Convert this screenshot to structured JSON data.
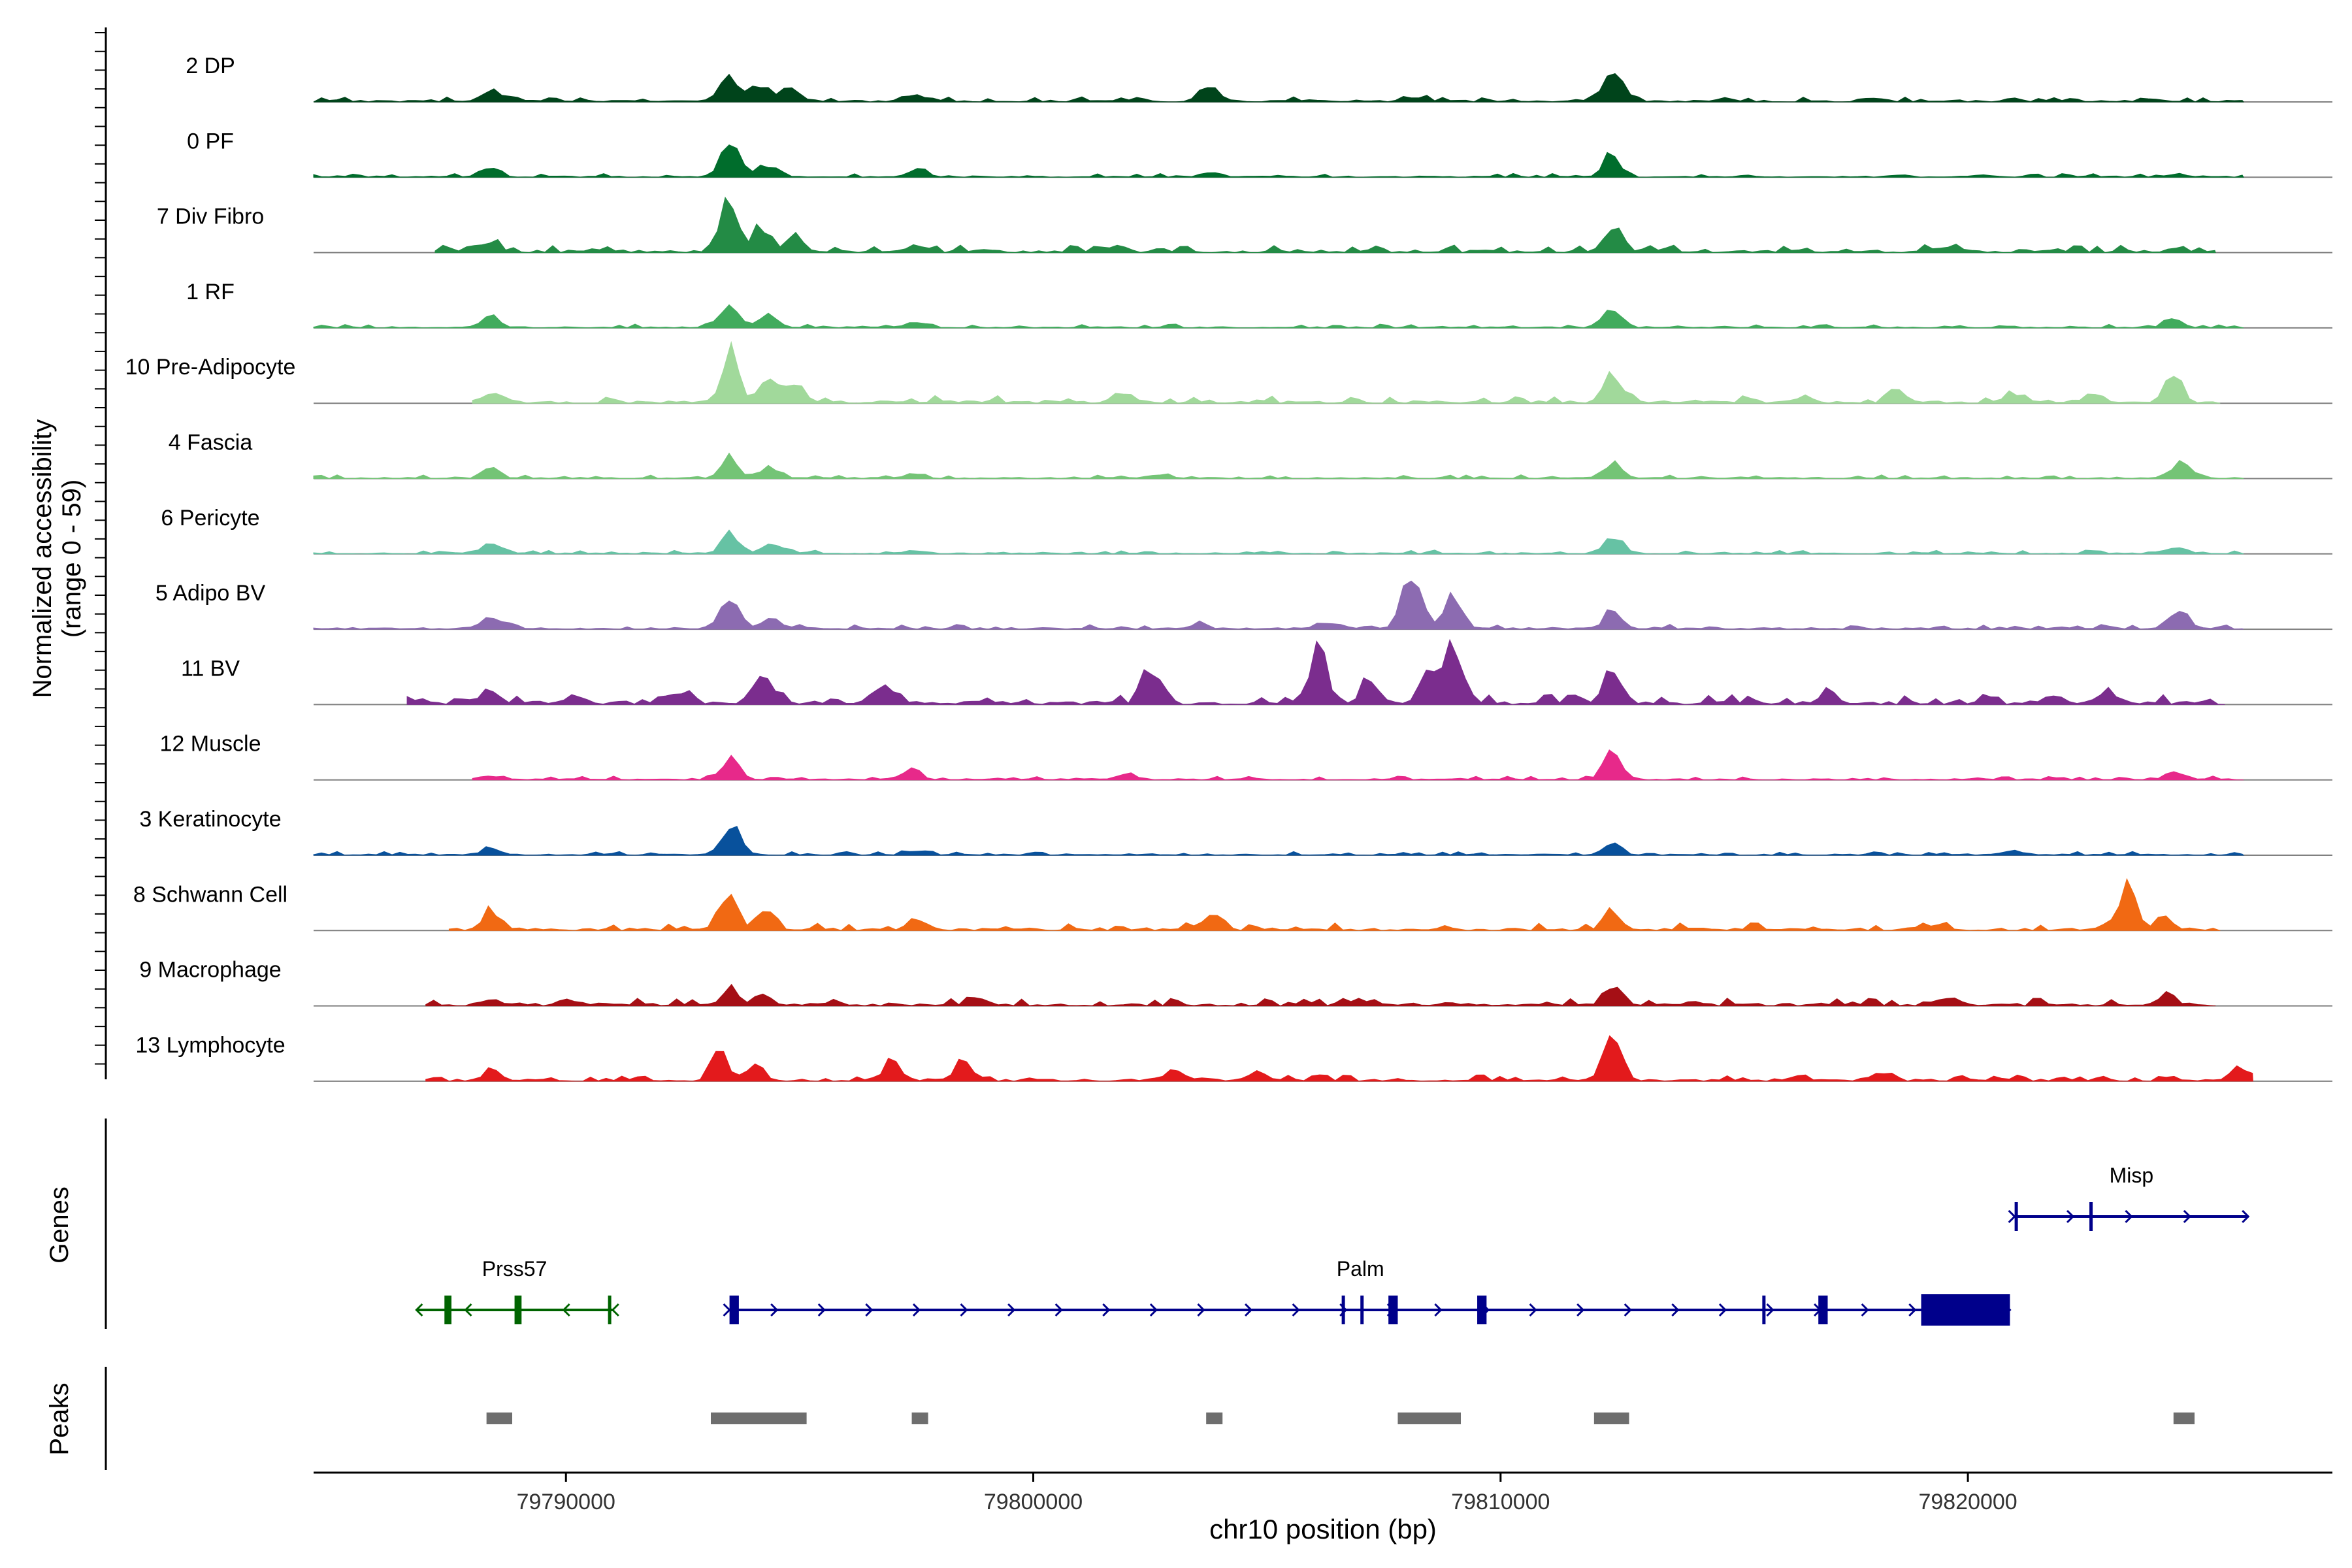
{
  "chart_data": {
    "type": "area",
    "title": "",
    "ylabel_line1": "Normalized accessibility",
    "ylabel_line2": "(range 0 - 59)",
    "xlabel": "chr10 position (bp)",
    "xlim": [
      79784600,
      79827800
    ],
    "xticks": [
      79790000,
      79800000,
      79810000,
      79820000
    ],
    "xtick_labels": [
      "79790000",
      "79800000",
      "79810000",
      "79820000"
    ],
    "tracks": [
      {
        "name": "2 DP",
        "color": "#00441b",
        "range": [
          79784600,
          79825900
        ],
        "noise": 0.04,
        "peaks": [
          [
            79788400,
            0.28
          ],
          [
            79793500,
            0.85
          ],
          [
            79794200,
            0.5
          ],
          [
            79794800,
            0.35
          ],
          [
            79797500,
            0.15
          ],
          [
            79803800,
            0.35
          ],
          [
            79808200,
            0.1
          ],
          [
            79812400,
            0.75
          ],
          [
            79818000,
            0.08
          ],
          [
            79824000,
            0.07
          ]
        ]
      },
      {
        "name": "0 PF",
        "color": "#006d2c",
        "range": [
          79784600,
          79825900
        ],
        "noise": 0.03,
        "peaks": [
          [
            79788400,
            0.3
          ],
          [
            79793500,
            0.95
          ],
          [
            79794300,
            0.35
          ],
          [
            79797500,
            0.2
          ],
          [
            79803800,
            0.15
          ],
          [
            79812400,
            0.55
          ],
          [
            79818500,
            0.05
          ],
          [
            79824500,
            0.05
          ]
        ]
      },
      {
        "name": "7 Div Fibro",
        "color": "#238b45",
        "range": [
          79787200,
          79825300
        ],
        "noise": 0.06,
        "peaks": [
          [
            79788400,
            0.25
          ],
          [
            79793500,
            1.3
          ],
          [
            79794200,
            0.6
          ],
          [
            79794900,
            0.4
          ],
          [
            79797500,
            0.12
          ],
          [
            79801800,
            0.15
          ],
          [
            79812400,
            0.8
          ],
          [
            79819500,
            0.12
          ],
          [
            79824500,
            0.1
          ]
        ]
      },
      {
        "name": "1 RF",
        "color": "#41ab5d",
        "range": [
          79784600,
          79825900
        ],
        "noise": 0.03,
        "peaks": [
          [
            79788400,
            0.28
          ],
          [
            79793500,
            0.65
          ],
          [
            79794300,
            0.35
          ],
          [
            79797500,
            0.15
          ],
          [
            79812400,
            0.55
          ],
          [
            79824400,
            0.2
          ]
        ]
      },
      {
        "name": "10 Pre-Adipocyte",
        "color": "#a1d99b",
        "range": [
          79788000,
          79825400
        ],
        "noise": 0.06,
        "peaks": [
          [
            79788400,
            0.2
          ],
          [
            79793500,
            1.3
          ],
          [
            79794300,
            0.7
          ],
          [
            79794900,
            0.5
          ],
          [
            79801900,
            0.25
          ],
          [
            79812400,
            0.85
          ],
          [
            79816500,
            0.18
          ],
          [
            79818500,
            0.3
          ],
          [
            79821000,
            0.22
          ],
          [
            79822700,
            0.25
          ],
          [
            79824400,
            0.7
          ]
        ]
      },
      {
        "name": "4 Fascia",
        "color": "#74c476",
        "range": [
          79784600,
          79825900
        ],
        "noise": 0.03,
        "peaks": [
          [
            79788400,
            0.25
          ],
          [
            79793500,
            0.5
          ],
          [
            79794400,
            0.3
          ],
          [
            79797500,
            0.12
          ],
          [
            79802700,
            0.1
          ],
          [
            79812400,
            0.45
          ],
          [
            79824600,
            0.48
          ]
        ]
      },
      {
        "name": "6 Pericyte",
        "color": "#66c2a4",
        "range": [
          79784600,
          79825900
        ],
        "noise": 0.03,
        "peaks": [
          [
            79788400,
            0.28
          ],
          [
            79793500,
            0.5
          ],
          [
            79794400,
            0.3
          ],
          [
            79797500,
            0.1
          ],
          [
            79812400,
            0.48
          ],
          [
            79824400,
            0.15
          ]
        ]
      },
      {
        "name": "5 Adipo BV",
        "color": "#8c6bb1",
        "range": [
          79784600,
          79825900
        ],
        "noise": 0.04,
        "peaks": [
          [
            79788400,
            0.35
          ],
          [
            79793500,
            0.8
          ],
          [
            79794400,
            0.35
          ],
          [
            79803500,
            0.12
          ],
          [
            79806400,
            0.2
          ],
          [
            79808100,
            1.8
          ],
          [
            79809000,
            0.9
          ],
          [
            79812400,
            0.5
          ],
          [
            79824500,
            0.55
          ]
        ]
      },
      {
        "name": "11 BV",
        "color": "#7b2d8e",
        "range": [
          79786600,
          79825500
        ],
        "noise": 0.08,
        "peaks": [
          [
            79788400,
            0.3
          ],
          [
            79790200,
            0.25
          ],
          [
            79792500,
            0.3
          ],
          [
            79794200,
            0.85
          ],
          [
            79796800,
            0.4
          ],
          [
            79802500,
            1.1
          ],
          [
            79806100,
            1.4
          ],
          [
            79807200,
            0.6
          ],
          [
            79808500,
            0.9
          ],
          [
            79809000,
            1.6
          ],
          [
            79812400,
            1.1
          ],
          [
            79817000,
            0.3
          ],
          [
            79821800,
            0.2
          ],
          [
            79823000,
            0.25
          ]
        ]
      },
      {
        "name": "12 Muscle",
        "color": "#e7298a",
        "range": [
          79788000,
          79825900
        ],
        "noise": 0.03,
        "peaks": [
          [
            79788400,
            0.12
          ],
          [
            79793500,
            0.6
          ],
          [
            79797400,
            0.3
          ],
          [
            79802000,
            0.15
          ],
          [
            79812400,
            0.7
          ],
          [
            79824500,
            0.2
          ]
        ]
      },
      {
        "name": "3 Keratinocyte",
        "color": "#08519c",
        "range": [
          79784600,
          79825900
        ],
        "noise": 0.03,
        "peaks": [
          [
            79788400,
            0.18
          ],
          [
            79793500,
            0.8
          ],
          [
            79797500,
            0.1
          ],
          [
            79812400,
            0.3
          ],
          [
            79821000,
            0.12
          ]
        ]
      },
      {
        "name": "8 Schwann Cell",
        "color": "#f16913",
        "range": [
          79787500,
          79825400
        ],
        "noise": 0.06,
        "peaks": [
          [
            79788400,
            0.55
          ],
          [
            79793500,
            0.95
          ],
          [
            79794300,
            0.45
          ],
          [
            79797500,
            0.2
          ],
          [
            79803800,
            0.45
          ],
          [
            79812400,
            0.5
          ],
          [
            79819200,
            0.15
          ],
          [
            79823400,
            1.1
          ],
          [
            79824200,
            0.4
          ]
        ]
      },
      {
        "name": "9 Macrophage",
        "color": "#a50f15",
        "range": [
          79787000,
          79825300
        ],
        "noise": 0.06,
        "peaks": [
          [
            79788400,
            0.15
          ],
          [
            79790000,
            0.15
          ],
          [
            79793500,
            0.35
          ],
          [
            79794200,
            0.3
          ],
          [
            79798800,
            0.2
          ],
          [
            79807000,
            0.15
          ],
          [
            79812400,
            0.45
          ],
          [
            79819500,
            0.15
          ],
          [
            79824300,
            0.25
          ]
        ]
      },
      {
        "name": "13 Lymphocyte",
        "color": "#e31a1c",
        "range": [
          79787000,
          79826100
        ],
        "noise": 0.05,
        "peaks": [
          [
            79788400,
            0.25
          ],
          [
            79793300,
            0.7
          ],
          [
            79794000,
            0.4
          ],
          [
            79797000,
            0.55
          ],
          [
            79798500,
            0.6
          ],
          [
            79803000,
            0.25
          ],
          [
            79804800,
            0.3
          ],
          [
            79812400,
            1.2
          ],
          [
            79818200,
            0.2
          ],
          [
            79825800,
            0.4
          ]
        ]
      }
    ],
    "genes": [
      {
        "name": "Prss57",
        "strand": "-",
        "color": "#006400",
        "start": 79786800,
        "end": 79791000,
        "exons": [
          [
            79787400,
            79787550
          ],
          [
            79788900,
            79789050
          ],
          [
            79790900,
            79790960
          ]
        ],
        "row": 2
      },
      {
        "name": "Palm",
        "strand": "+",
        "color": "#00008b",
        "start": 79793500,
        "end": 79820900,
        "exons": [
          [
            79793500,
            79793700
          ],
          [
            79806600,
            79806660
          ],
          [
            79807000,
            79807060
          ],
          [
            79807600,
            79807800
          ],
          [
            79809500,
            79809700
          ],
          [
            79815600,
            79815650
          ],
          [
            79816800,
            79817000
          ],
          [
            79819000,
            79820900
          ]
        ],
        "row": 2
      },
      {
        "name": "Misp",
        "strand": "+",
        "color": "#00008b",
        "start": 79821000,
        "end": 79826000,
        "exons": [
          [
            79821000,
            79821060
          ],
          [
            79822600,
            79822660
          ]
        ],
        "row": 1
      }
    ],
    "peaks_track": [
      [
        79788300,
        79788850
      ],
      [
        79793100,
        79795150
      ],
      [
        79797400,
        79797750
      ],
      [
        79803700,
        79804050
      ],
      [
        79807800,
        79809150
      ],
      [
        79812000,
        79812750
      ],
      [
        79824400,
        79824850
      ]
    ],
    "track_labels": {
      "genes": "Genes",
      "peaks": "Peaks"
    }
  }
}
